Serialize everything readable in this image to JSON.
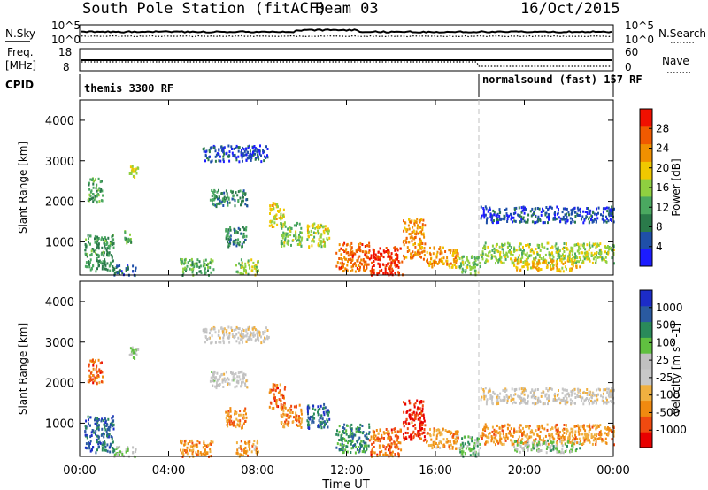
{
  "header": {
    "station": "South Pole Station (fitACF)",
    "beam": "Beam 03",
    "date": "16/Oct/2015"
  },
  "noise_panel": {
    "left_label": "N.Sky",
    "left_ticks": [
      "10^5",
      "10^0"
    ],
    "right_label": "N.Search",
    "right_ticks": [
      "10^5",
      "10^0"
    ]
  },
  "freq_panel": {
    "left_label_1": "Freq.",
    "left_label_2": "[MHz]",
    "left_ticks": [
      "18",
      "8"
    ],
    "right_label": "Nave",
    "right_ticks": [
      "60",
      "0"
    ]
  },
  "cpid": {
    "label": "CPID",
    "modes": [
      {
        "name": "themis 3300 RF",
        "start_hour": 0
      },
      {
        "name": "normalsound (fast) 157 RF",
        "start_hour": 18
      }
    ]
  },
  "x_axis": {
    "label": "Time UT",
    "ticks": [
      "00:00",
      "04:00",
      "08:00",
      "12:00",
      "16:00",
      "20:00",
      "00:00"
    ],
    "range_hours": [
      0,
      24
    ]
  },
  "colors": {
    "power_scale": [
      "#1c1cff",
      "#1f4fa8",
      "#2a7a4a",
      "#4aa860",
      "#8fd040",
      "#f0c800",
      "#f09000",
      "#f05a00",
      "#f01000"
    ],
    "velocity_scale": [
      "#e80000",
      "#f04a10",
      "#f08a10",
      "#f0b040",
      "#c8c8c8",
      "#c0c0c0",
      "#60c040",
      "#2a8a5a",
      "#2a5aa0",
      "#1c2cc8"
    ]
  },
  "chart_data": [
    {
      "type": "heatmap",
      "title": "",
      "xlabel": "",
      "ylabel": "Slant Range [km]",
      "y_ticks": [
        "1000",
        "2000",
        "3000",
        "4000"
      ],
      "ylim": [
        180,
        4500
      ],
      "colorbar_label": "Power [dB]",
      "colorbar_ticks": [
        "4",
        "8",
        "12",
        "16",
        "20",
        "24",
        "28"
      ],
      "regions": [
        {
          "t0": 0.2,
          "t1": 1.5,
          "r0": 300,
          "r1": 1200,
          "level": 0.35
        },
        {
          "t0": 0.3,
          "t1": 1.0,
          "r0": 2000,
          "r1": 2600,
          "level": 0.4
        },
        {
          "t0": 1.5,
          "t1": 2.5,
          "r0": 200,
          "r1": 450,
          "level": 0.2
        },
        {
          "t0": 2.2,
          "t1": 2.6,
          "r0": 2600,
          "r1": 2900,
          "level": 0.55
        },
        {
          "t0": 2.0,
          "t1": 2.3,
          "r0": 1000,
          "r1": 1300,
          "level": 0.4
        },
        {
          "t0": 4.5,
          "t1": 6.0,
          "r0": 200,
          "r1": 600,
          "level": 0.4
        },
        {
          "t0": 5.5,
          "t1": 8.5,
          "r0": 3000,
          "r1": 3400,
          "level": 0.15
        },
        {
          "t0": 5.8,
          "t1": 7.5,
          "r0": 1900,
          "r1": 2300,
          "level": 0.3
        },
        {
          "t0": 6.5,
          "t1": 7.5,
          "r0": 900,
          "r1": 1400,
          "level": 0.3
        },
        {
          "t0": 7.0,
          "t1": 8.0,
          "r0": 200,
          "r1": 600,
          "level": 0.5
        },
        {
          "t0": 8.5,
          "t1": 9.2,
          "r0": 1400,
          "r1": 2000,
          "level": 0.6
        },
        {
          "t0": 9.0,
          "t1": 10.0,
          "r0": 900,
          "r1": 1500,
          "level": 0.45
        },
        {
          "t0": 10.2,
          "t1": 11.2,
          "r0": 900,
          "r1": 1500,
          "level": 0.55
        },
        {
          "t0": 11.5,
          "t1": 13.0,
          "r0": 300,
          "r1": 1000,
          "level": 0.8
        },
        {
          "t0": 13.0,
          "t1": 14.5,
          "r0": 200,
          "r1": 900,
          "level": 0.92
        },
        {
          "t0": 14.5,
          "t1": 15.5,
          "r0": 600,
          "r1": 1600,
          "level": 0.75
        },
        {
          "t0": 15.5,
          "t1": 17.0,
          "r0": 400,
          "r1": 900,
          "level": 0.7
        },
        {
          "t0": 17.0,
          "t1": 18.0,
          "r0": 200,
          "r1": 700,
          "level": 0.45
        },
        {
          "t0": 18.0,
          "t1": 24.0,
          "r0": 1500,
          "r1": 1900,
          "level": 0.15
        },
        {
          "t0": 18.0,
          "t1": 24.0,
          "r0": 500,
          "r1": 1000,
          "level": 0.5
        },
        {
          "t0": 19.5,
          "t1": 22.5,
          "r0": 300,
          "r1": 600,
          "level": 0.65
        }
      ]
    },
    {
      "type": "heatmap",
      "title": "",
      "xlabel": "Time UT",
      "ylabel": "Slant Range [km]",
      "y_ticks": [
        "1000",
        "2000",
        "3000",
        "4000"
      ],
      "ylim": [
        180,
        4500
      ],
      "colorbar_label": "Velocity [m s^-1]",
      "colorbar_ticks": [
        "1000",
        "500",
        "100",
        "25",
        "-25",
        "-100",
        "-500",
        "-1000"
      ],
      "regions": [
        {
          "t0": 0.2,
          "t1": 1.5,
          "r0": 300,
          "r1": 1200,
          "level": 0.85
        },
        {
          "t0": 0.3,
          "t1": 1.0,
          "r0": 2000,
          "r1": 2600,
          "level": 0.2
        },
        {
          "t0": 1.5,
          "t1": 2.5,
          "r0": 200,
          "r1": 450,
          "level": 0.6
        },
        {
          "t0": 2.2,
          "t1": 2.6,
          "r0": 2600,
          "r1": 2900,
          "level": 0.6
        },
        {
          "t0": 4.5,
          "t1": 6.0,
          "r0": 200,
          "r1": 600,
          "level": 0.25
        },
        {
          "t0": 5.5,
          "t1": 8.5,
          "r0": 3000,
          "r1": 3400,
          "level": 0.47
        },
        {
          "t0": 5.8,
          "t1": 7.5,
          "r0": 1900,
          "r1": 2300,
          "level": 0.5
        },
        {
          "t0": 6.5,
          "t1": 7.5,
          "r0": 900,
          "r1": 1400,
          "level": 0.25
        },
        {
          "t0": 7.0,
          "t1": 8.0,
          "r0": 200,
          "r1": 600,
          "level": 0.3
        },
        {
          "t0": 8.5,
          "t1": 9.2,
          "r0": 1400,
          "r1": 2000,
          "level": 0.2
        },
        {
          "t0": 9.0,
          "t1": 10.0,
          "r0": 900,
          "r1": 1500,
          "level": 0.25
        },
        {
          "t0": 10.2,
          "t1": 11.2,
          "r0": 900,
          "r1": 1500,
          "level": 0.85
        },
        {
          "t0": 11.5,
          "t1": 13.0,
          "r0": 300,
          "r1": 1000,
          "level": 0.75
        },
        {
          "t0": 13.0,
          "t1": 14.5,
          "r0": 200,
          "r1": 900,
          "level": 0.2
        },
        {
          "t0": 14.5,
          "t1": 15.5,
          "r0": 600,
          "r1": 1600,
          "level": 0.1
        },
        {
          "t0": 15.5,
          "t1": 17.0,
          "r0": 400,
          "r1": 900,
          "level": 0.3
        },
        {
          "t0": 17.0,
          "t1": 18.0,
          "r0": 200,
          "r1": 700,
          "level": 0.65
        },
        {
          "t0": 18.0,
          "t1": 24.0,
          "r0": 1500,
          "r1": 1900,
          "level": 0.47
        },
        {
          "t0": 18.0,
          "t1": 24.0,
          "r0": 500,
          "r1": 1000,
          "level": 0.28
        },
        {
          "t0": 19.5,
          "t1": 22.5,
          "r0": 300,
          "r1": 600,
          "level": 0.6
        }
      ]
    }
  ]
}
